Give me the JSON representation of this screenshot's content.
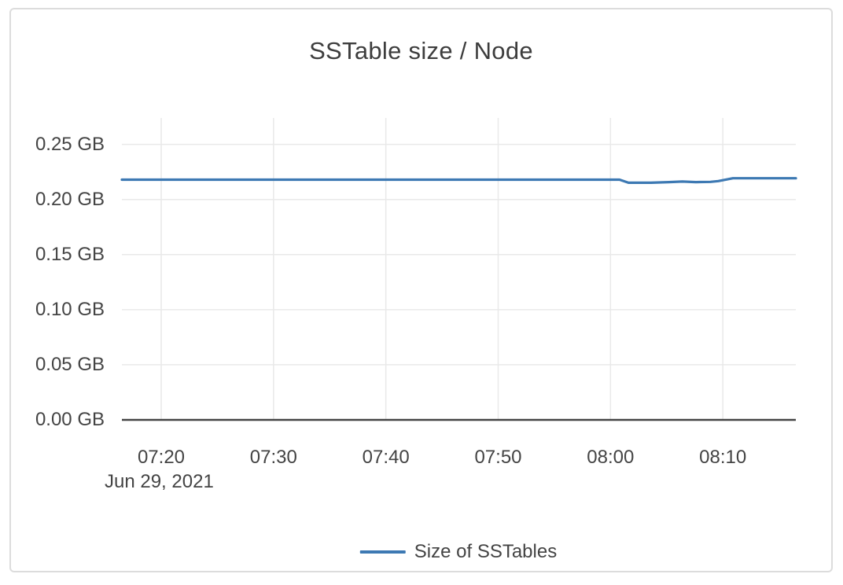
{
  "chart_data": {
    "type": "line",
    "title": "SSTable size / Node",
    "x_axis": {
      "date_label": "Jun 29, 2021",
      "minutes_relative_to": "07:00",
      "range_minutes": [
        16.5,
        76.5
      ],
      "ticks": [
        {
          "label": "07:20",
          "minutes": 20
        },
        {
          "label": "07:30",
          "minutes": 30
        },
        {
          "label": "07:40",
          "minutes": 40
        },
        {
          "label": "07:50",
          "minutes": 50
        },
        {
          "label": "08:00",
          "minutes": 60
        },
        {
          "label": "08:10",
          "minutes": 70
        }
      ]
    },
    "y_axis": {
      "range_gb": [
        0,
        0.274
      ],
      "ticks": [
        {
          "label": "0.00 GB",
          "value": 0.0
        },
        {
          "label": "0.05 GB",
          "value": 0.05
        },
        {
          "label": "0.10 GB",
          "value": 0.1
        },
        {
          "label": "0.15 GB",
          "value": 0.15
        },
        {
          "label": "0.20 GB",
          "value": 0.2
        },
        {
          "label": "0.25 GB",
          "value": 0.25
        }
      ]
    },
    "series": [
      {
        "name": "Size of SSTables",
        "color": "#3d79b3",
        "points_min_gb": [
          [
            16.5,
            0.218
          ],
          [
            60.8,
            0.218
          ],
          [
            61.6,
            0.2152
          ],
          [
            63.6,
            0.2152
          ],
          [
            65.2,
            0.2158
          ],
          [
            66.4,
            0.2163
          ],
          [
            67.6,
            0.2158
          ],
          [
            68.9,
            0.216
          ],
          [
            69.6,
            0.2167
          ],
          [
            70.9,
            0.2193
          ],
          [
            76.5,
            0.2193
          ]
        ]
      }
    ],
    "grid": true,
    "legend_position": "bottom-center",
    "colors": {
      "grid": "#e9e9e9",
      "axis": "#444444",
      "tick_text": "#444444",
      "title_text": "#3d3d3d",
      "card_border": "#dcdcdc"
    }
  }
}
